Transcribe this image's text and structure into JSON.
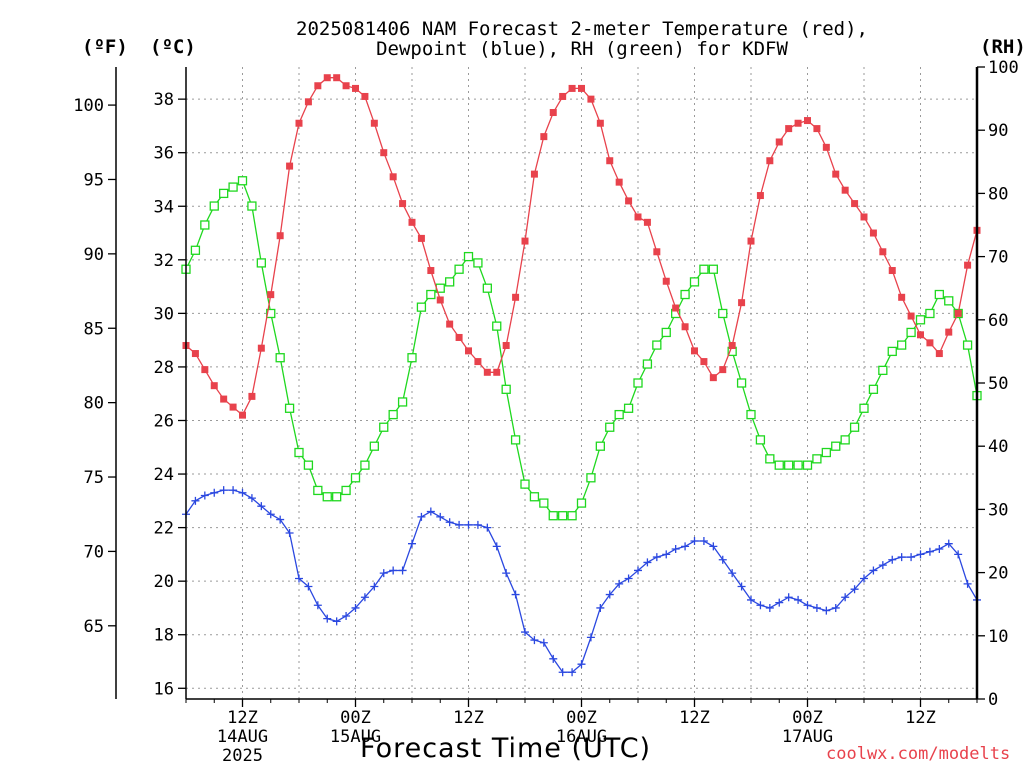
{
  "title": {
    "line1": "2025081406 NAM Forecast 2-meter Temperature (red),",
    "line2": "Dewpoint (blue), RH (green) for KDFW"
  },
  "axis_units": {
    "fahrenheit": "(ºF)",
    "celsius": "(ºC)",
    "rh": "(RH)"
  },
  "x_axis_title": "Forecast Time (UTC)",
  "credit": "coolwx.com/modelts",
  "colors": {
    "temperature": "#e8424c",
    "dewpoint": "#2b48e0",
    "rh": "#1fd81f",
    "grid": "#9a9a9a"
  },
  "chart_data": {
    "type": "line",
    "x_unit": "hour (UTC)",
    "x_range": [
      6,
      90
    ],
    "x_ticks": [
      {
        "x": 12,
        "label": "12Z",
        "date": "14AUG",
        "year": "2025"
      },
      {
        "x": 24,
        "label": "00Z",
        "date": "15AUG"
      },
      {
        "x": 36,
        "label": "12Z"
      },
      {
        "x": 48,
        "label": "00Z",
        "date": "16AUG"
      },
      {
        "x": 60,
        "label": "12Z"
      },
      {
        "x": 72,
        "label": "00Z",
        "date": "17AUG"
      },
      {
        "x": 84,
        "label": "12Z"
      }
    ],
    "y_celsius": {
      "range": [
        15.6,
        39.2
      ],
      "ticks": [
        16,
        18,
        20,
        22,
        24,
        26,
        28,
        30,
        32,
        34,
        36,
        38
      ]
    },
    "y_fahrenheit": {
      "ticks": [
        65,
        70,
        75,
        80,
        85,
        90,
        95,
        100
      ]
    },
    "y_rh": {
      "range": [
        0,
        100
      ],
      "ticks": [
        0,
        10,
        20,
        30,
        40,
        50,
        60,
        70,
        80,
        90,
        100
      ]
    },
    "grid": true,
    "series": [
      {
        "name": "Temperature",
        "unit": "°C",
        "axis": "celsius",
        "marker": "filled-square",
        "points": [
          [
            6,
            28.8
          ],
          [
            7,
            28.5
          ],
          [
            8,
            27.9
          ],
          [
            9,
            27.3
          ],
          [
            10,
            26.8
          ],
          [
            11,
            26.5
          ],
          [
            12,
            26.2
          ],
          [
            13,
            26.9
          ],
          [
            14,
            28.7
          ],
          [
            15,
            30.7
          ],
          [
            16,
            32.9
          ],
          [
            17,
            35.5
          ],
          [
            18,
            37.1
          ],
          [
            19,
            37.9
          ],
          [
            20,
            38.5
          ],
          [
            21,
            38.8
          ],
          [
            22,
            38.8
          ],
          [
            23,
            38.5
          ],
          [
            24,
            38.4
          ],
          [
            25,
            38.1
          ],
          [
            26,
            37.1
          ],
          [
            27,
            36.0
          ],
          [
            28,
            35.1
          ],
          [
            29,
            34.1
          ],
          [
            30,
            33.4
          ],
          [
            31,
            32.8
          ],
          [
            32,
            31.6
          ],
          [
            33,
            30.5
          ],
          [
            34,
            29.6
          ],
          [
            35,
            29.1
          ],
          [
            36,
            28.6
          ],
          [
            37,
            28.2
          ],
          [
            38,
            27.8
          ],
          [
            39,
            27.8
          ],
          [
            40,
            28.8
          ],
          [
            41,
            30.6
          ],
          [
            42,
            32.7
          ],
          [
            43,
            35.2
          ],
          [
            44,
            36.6
          ],
          [
            45,
            37.5
          ],
          [
            46,
            38.1
          ],
          [
            47,
            38.4
          ],
          [
            48,
            38.4
          ],
          [
            49,
            38.0
          ],
          [
            50,
            37.1
          ],
          [
            51,
            35.7
          ],
          [
            52,
            34.9
          ],
          [
            53,
            34.2
          ],
          [
            54,
            33.6
          ],
          [
            55,
            33.4
          ],
          [
            56,
            32.3
          ],
          [
            57,
            31.2
          ],
          [
            58,
            30.2
          ],
          [
            59,
            29.5
          ],
          [
            60,
            28.6
          ],
          [
            61,
            28.2
          ],
          [
            62,
            27.6
          ],
          [
            63,
            27.9
          ],
          [
            64,
            28.8
          ],
          [
            65,
            30.4
          ],
          [
            66,
            32.7
          ],
          [
            67,
            34.4
          ],
          [
            68,
            35.7
          ],
          [
            69,
            36.4
          ],
          [
            70,
            36.9
          ],
          [
            71,
            37.1
          ],
          [
            72,
            37.2
          ],
          [
            73,
            36.9
          ],
          [
            74,
            36.2
          ],
          [
            75,
            35.2
          ],
          [
            76,
            34.6
          ],
          [
            77,
            34.1
          ],
          [
            78,
            33.6
          ],
          [
            79,
            33.0
          ],
          [
            80,
            32.3
          ],
          [
            81,
            31.6
          ],
          [
            82,
            30.6
          ],
          [
            83,
            29.9
          ],
          [
            84,
            29.2
          ],
          [
            85,
            28.9
          ],
          [
            86,
            28.5
          ],
          [
            87,
            29.3
          ],
          [
            88,
            30.0
          ],
          [
            89,
            31.8
          ],
          [
            90,
            33.1
          ]
        ]
      },
      {
        "name": "Dewpoint",
        "unit": "°C",
        "axis": "celsius",
        "marker": "plus",
        "points": [
          [
            6,
            22.5
          ],
          [
            7,
            23.0
          ],
          [
            8,
            23.2
          ],
          [
            9,
            23.3
          ],
          [
            10,
            23.4
          ],
          [
            11,
            23.4
          ],
          [
            12,
            23.3
          ],
          [
            13,
            23.1
          ],
          [
            14,
            22.8
          ],
          [
            15,
            22.5
          ],
          [
            16,
            22.3
          ],
          [
            17,
            21.8
          ],
          [
            18,
            20.1
          ],
          [
            19,
            19.8
          ],
          [
            20,
            19.1
          ],
          [
            21,
            18.6
          ],
          [
            22,
            18.5
          ],
          [
            23,
            18.7
          ],
          [
            24,
            19.0
          ],
          [
            25,
            19.4
          ],
          [
            26,
            19.8
          ],
          [
            27,
            20.3
          ],
          [
            28,
            20.4
          ],
          [
            29,
            20.4
          ],
          [
            30,
            21.4
          ],
          [
            31,
            22.4
          ],
          [
            32,
            22.6
          ],
          [
            33,
            22.4
          ],
          [
            34,
            22.2
          ],
          [
            35,
            22.1
          ],
          [
            36,
            22.1
          ],
          [
            37,
            22.1
          ],
          [
            38,
            22.0
          ],
          [
            39,
            21.3
          ],
          [
            40,
            20.3
          ],
          [
            41,
            19.5
          ],
          [
            42,
            18.1
          ],
          [
            43,
            17.8
          ],
          [
            44,
            17.7
          ],
          [
            45,
            17.1
          ],
          [
            46,
            16.6
          ],
          [
            47,
            16.6
          ],
          [
            48,
            16.9
          ],
          [
            49,
            17.9
          ],
          [
            50,
            19.0
          ],
          [
            51,
            19.5
          ],
          [
            52,
            19.9
          ],
          [
            53,
            20.1
          ],
          [
            54,
            20.4
          ],
          [
            55,
            20.7
          ],
          [
            56,
            20.9
          ],
          [
            57,
            21.0
          ],
          [
            58,
            21.2
          ],
          [
            59,
            21.3
          ],
          [
            60,
            21.5
          ],
          [
            61,
            21.5
          ],
          [
            62,
            21.3
          ],
          [
            63,
            20.8
          ],
          [
            64,
            20.3
          ],
          [
            65,
            19.8
          ],
          [
            66,
            19.3
          ],
          [
            67,
            19.1
          ],
          [
            68,
            19.0
          ],
          [
            69,
            19.2
          ],
          [
            70,
            19.4
          ],
          [
            71,
            19.3
          ],
          [
            72,
            19.1
          ],
          [
            73,
            19.0
          ],
          [
            74,
            18.9
          ],
          [
            75,
            19.0
          ],
          [
            76,
            19.4
          ],
          [
            77,
            19.7
          ],
          [
            78,
            20.1
          ],
          [
            79,
            20.4
          ],
          [
            80,
            20.6
          ],
          [
            81,
            20.8
          ],
          [
            82,
            20.9
          ],
          [
            83,
            20.9
          ],
          [
            84,
            21.0
          ],
          [
            85,
            21.1
          ],
          [
            86,
            21.2
          ],
          [
            87,
            21.4
          ],
          [
            88,
            21.0
          ],
          [
            89,
            19.9
          ],
          [
            90,
            19.3
          ]
        ]
      },
      {
        "name": "RH",
        "unit": "%",
        "axis": "rh",
        "marker": "open-square",
        "points": [
          [
            6,
            68
          ],
          [
            7,
            71
          ],
          [
            8,
            75
          ],
          [
            9,
            78
          ],
          [
            10,
            80
          ],
          [
            11,
            81
          ],
          [
            12,
            82
          ],
          [
            13,
            78
          ],
          [
            14,
            69
          ],
          [
            15,
            61
          ],
          [
            16,
            54
          ],
          [
            17,
            46
          ],
          [
            18,
            39
          ],
          [
            19,
            37
          ],
          [
            20,
            33
          ],
          [
            21,
            32
          ],
          [
            22,
            32
          ],
          [
            23,
            33
          ],
          [
            24,
            35
          ],
          [
            25,
            37
          ],
          [
            26,
            40
          ],
          [
            27,
            43
          ],
          [
            28,
            45
          ],
          [
            29,
            47
          ],
          [
            30,
            54
          ],
          [
            31,
            62
          ],
          [
            32,
            64
          ],
          [
            33,
            65
          ],
          [
            34,
            66
          ],
          [
            35,
            68
          ],
          [
            36,
            70
          ],
          [
            37,
            69
          ],
          [
            38,
            65
          ],
          [
            39,
            59
          ],
          [
            40,
            49
          ],
          [
            41,
            41
          ],
          [
            42,
            34
          ],
          [
            43,
            32
          ],
          [
            44,
            31
          ],
          [
            45,
            29
          ],
          [
            46,
            29
          ],
          [
            47,
            29
          ],
          [
            48,
            31
          ],
          [
            49,
            35
          ],
          [
            50,
            40
          ],
          [
            51,
            43
          ],
          [
            52,
            45
          ],
          [
            53,
            46
          ],
          [
            54,
            50
          ],
          [
            55,
            53
          ],
          [
            56,
            56
          ],
          [
            57,
            58
          ],
          [
            58,
            61
          ],
          [
            59,
            64
          ],
          [
            60,
            66
          ],
          [
            61,
            68
          ],
          [
            62,
            68
          ],
          [
            63,
            61
          ],
          [
            64,
            55
          ],
          [
            65,
            50
          ],
          [
            66,
            45
          ],
          [
            67,
            41
          ],
          [
            68,
            38
          ],
          [
            69,
            37
          ],
          [
            70,
            37
          ],
          [
            71,
            37
          ],
          [
            72,
            37
          ],
          [
            73,
            38
          ],
          [
            74,
            39
          ],
          [
            75,
            40
          ],
          [
            76,
            41
          ],
          [
            77,
            43
          ],
          [
            78,
            46
          ],
          [
            79,
            49
          ],
          [
            80,
            52
          ],
          [
            81,
            55
          ],
          [
            82,
            56
          ],
          [
            83,
            58
          ],
          [
            84,
            60
          ],
          [
            85,
            61
          ],
          [
            86,
            64
          ],
          [
            87,
            63
          ],
          [
            88,
            61
          ],
          [
            89,
            56
          ],
          [
            90,
            48
          ]
        ]
      }
    ]
  }
}
